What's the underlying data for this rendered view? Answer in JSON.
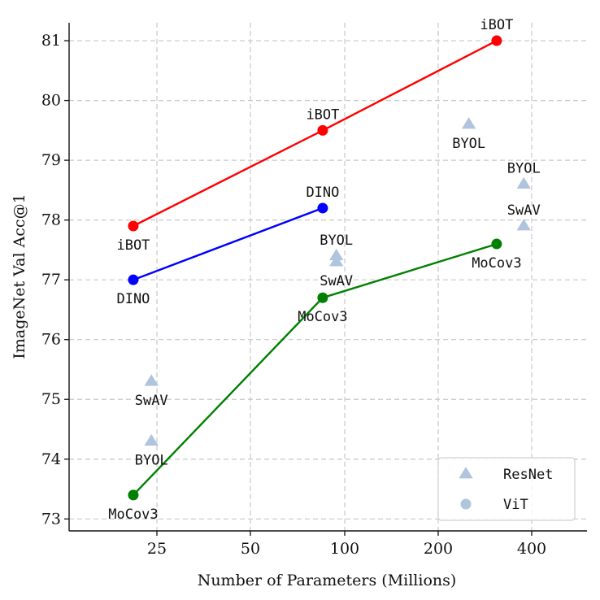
{
  "chart_data": {
    "type": "scatter",
    "xlabel": "Number of Parameters (Millions)",
    "ylabel": "ImageNet Val Acc@1",
    "x_scale": "categorical-log",
    "x_ticks": [
      "25",
      "50",
      "100",
      "200",
      "400"
    ],
    "y_ticks": [
      73,
      74,
      75,
      76,
      77,
      78,
      79,
      80,
      81
    ],
    "ylim": [
      72.8,
      81.3
    ],
    "grid": true,
    "legend_position": "bottom-right",
    "legend": [
      {
        "label": "ResNet",
        "marker": "triangle"
      },
      {
        "label": "ViT",
        "marker": "circle"
      }
    ],
    "series": [
      {
        "name": "iBOT",
        "marker": "circle",
        "color": "#ff0000",
        "line": true,
        "points": [
          {
            "x": 21,
            "y": 77.9,
            "label": "iBOT",
            "label_pos": "below"
          },
          {
            "x": 85,
            "y": 79.5,
            "label": "iBOT",
            "label_pos": "above"
          },
          {
            "x": 307,
            "y": 81.0,
            "label": "iBOT",
            "label_pos": "above"
          }
        ]
      },
      {
        "name": "DINO",
        "marker": "circle",
        "color": "#0000ff",
        "line": true,
        "points": [
          {
            "x": 21,
            "y": 77.0,
            "label": "DINO",
            "label_pos": "below"
          },
          {
            "x": 85,
            "y": 78.2,
            "label": "DINO",
            "label_pos": "above"
          }
        ]
      },
      {
        "name": "MoCov3",
        "marker": "circle",
        "color": "#008000",
        "line": true,
        "points": [
          {
            "x": 21,
            "y": 73.4,
            "label": "MoCov3",
            "label_pos": "below"
          },
          {
            "x": 85,
            "y": 76.7,
            "label": "MoCov3",
            "label_pos": "below"
          },
          {
            "x": 307,
            "y": 77.6,
            "label": "MoCov3",
            "label_pos": "below"
          }
        ]
      },
      {
        "name": "ResNet",
        "marker": "triangle",
        "color": "#b0c4de",
        "line": false,
        "points": [
          {
            "x": 24,
            "y": 75.3,
            "label": "SwAV",
            "label_pos": "below"
          },
          {
            "x": 24,
            "y": 74.3,
            "label": "BYOL",
            "label_pos": "below"
          },
          {
            "x": 94,
            "y": 77.4,
            "label": "BYOL",
            "label_pos": "above"
          },
          {
            "x": 94,
            "y": 77.3,
            "label": "SwAV",
            "label_pos": "below"
          },
          {
            "x": 250,
            "y": 79.6,
            "label": "BYOL",
            "label_pos": "below"
          },
          {
            "x": 375,
            "y": 78.6,
            "label": "BYOL",
            "label_pos": "above"
          },
          {
            "x": 375,
            "y": 77.9,
            "label": "SwAV",
            "label_pos": "above"
          }
        ]
      }
    ]
  }
}
